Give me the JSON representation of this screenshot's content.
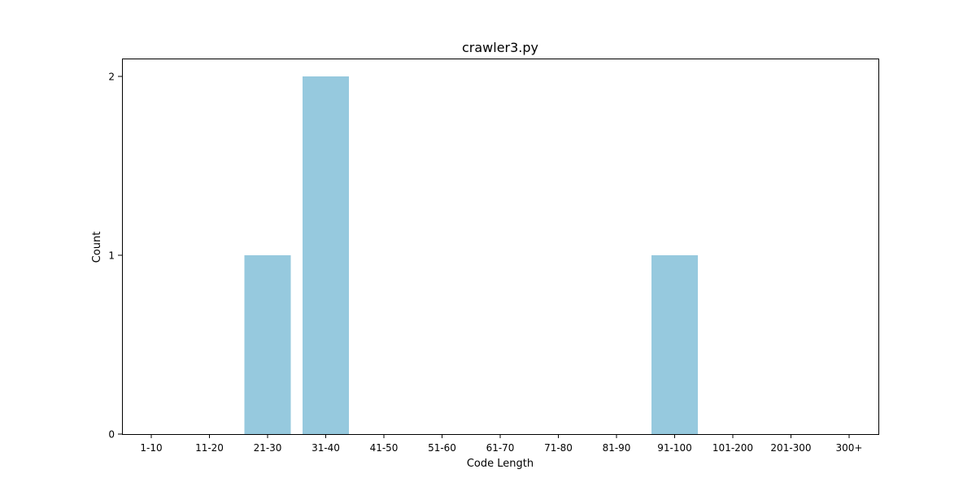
{
  "chart_data": {
    "type": "bar",
    "title": "crawler3.py",
    "xlabel": "Code Length",
    "ylabel": "Count",
    "categories": [
      "1-10",
      "11-20",
      "21-30",
      "31-40",
      "41-50",
      "51-60",
      "61-70",
      "71-80",
      "81-90",
      "91-100",
      "101-200",
      "201-300",
      "300+"
    ],
    "values": [
      0,
      0,
      1,
      2,
      0,
      0,
      0,
      0,
      0,
      1,
      0,
      0,
      0
    ],
    "yticks": [
      0,
      1,
      2
    ],
    "ylim": [
      0,
      2.1
    ],
    "grid": false,
    "bar_color": "#96c9de"
  }
}
